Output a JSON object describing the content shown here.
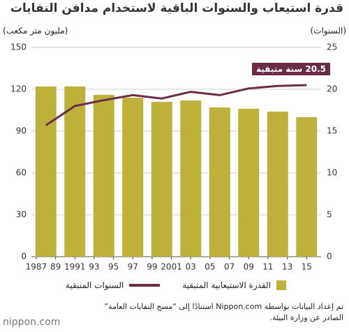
{
  "chart_data": {
    "type": "bar_line",
    "title": "قدرة استيعاب والسنوات الباقية لاستخدام مدافن النفايات",
    "y_label": "(مليون متر مكعب)",
    "y2_label": "(السنوات)",
    "annotation": "20.5 سنة متبقية",
    "x": [
      1988,
      1991,
      1994,
      1997,
      2000,
      2003,
      2006,
      2009,
      2012,
      2015
    ],
    "xlim": [
      1986.5,
      2016.5
    ],
    "xticks": [
      1987,
      {
        "value": 1989,
        "label": "89"
      },
      1991,
      {
        "value": 1993,
        "label": "93"
      },
      {
        "value": 1995,
        "label": "95"
      },
      {
        "value": 1997,
        "label": "97"
      },
      {
        "value": 1999,
        "label": "99"
      },
      2001,
      {
        "value": 2003,
        "label": "03"
      },
      {
        "value": 2005,
        "label": "05"
      },
      {
        "value": 2007,
        "label": "07"
      },
      {
        "value": 2009,
        "label": "09"
      },
      {
        "value": 2011,
        "label": "11"
      },
      {
        "value": 2013,
        "label": "13"
      },
      {
        "value": 2015,
        "label": "15"
      }
    ],
    "ylim": [
      0,
      150
    ],
    "yticks": [
      0,
      30,
      60,
      90,
      120,
      150
    ],
    "y2lim": [
      0,
      25
    ],
    "y2ticks": [
      0,
      5,
      10,
      15,
      20,
      25
    ],
    "grid": true,
    "series": [
      {
        "name": "القدرة الاستيعابية المتبقية",
        "type": "bar",
        "color": "#bdb13c",
        "axis": "y",
        "values": [
          122,
          122,
          116,
          114,
          111,
          112,
          107,
          106,
          104,
          100
        ]
      },
      {
        "name": "السنوات المتبقية",
        "type": "line",
        "color": "#6b2c47",
        "axis": "y2",
        "values": [
          15.7,
          18.0,
          18.7,
          19.3,
          18.9,
          19.7,
          19.3,
          20.1,
          20.4,
          20.5
        ]
      }
    ],
    "source": [
      "تم إعداد البيانات بواسطة Nippon.com استنادًا إلى “مسح النفايات العامة”",
      "الصادر عن وزارة البيئة."
    ],
    "logo": "nippon.com"
  }
}
